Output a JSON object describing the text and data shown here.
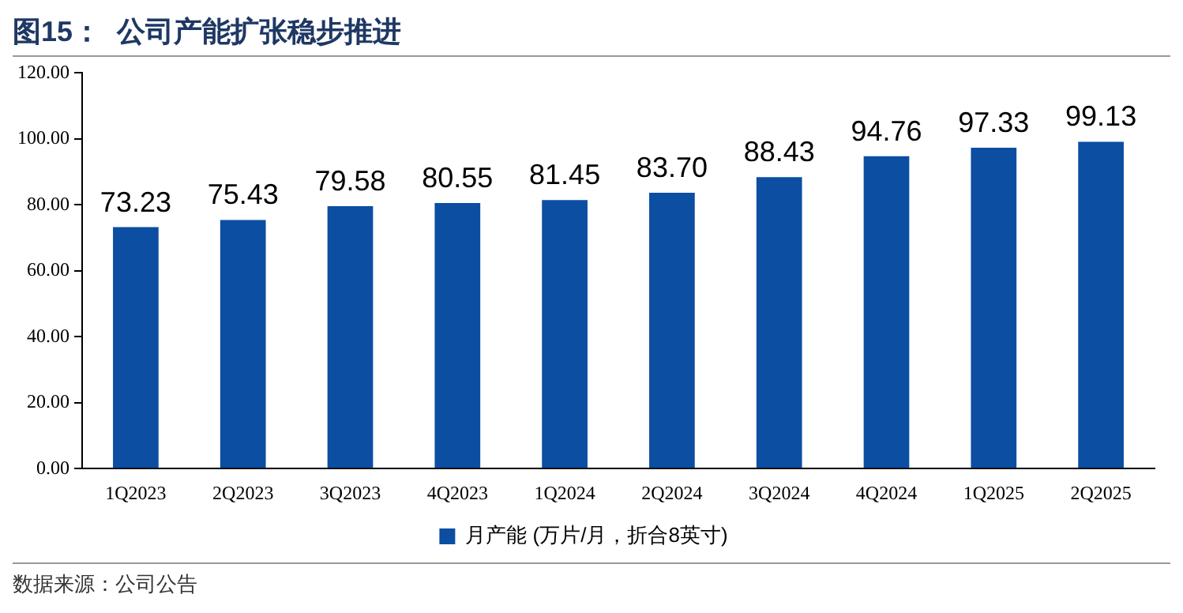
{
  "chart_data": {
    "type": "bar",
    "title": "图15：  公司产能扩张稳步推进",
    "categories": [
      "1Q2023",
      "2Q2023",
      "3Q2023",
      "4Q2023",
      "1Q2024",
      "2Q2024",
      "3Q2024",
      "4Q2024",
      "1Q2025",
      "2Q2025"
    ],
    "series": [
      {
        "name": "月产能 (万片/月，折合8英寸)",
        "color": "#0b4ea2",
        "values": [
          73.23,
          75.43,
          79.58,
          80.55,
          81.45,
          83.7,
          88.43,
          94.76,
          97.33,
          99.13
        ]
      }
    ],
    "value_labels": [
      "73.23",
      "75.43",
      "79.58",
      "80.55",
      "81.45",
      "83.70",
      "88.43",
      "94.76",
      "97.33",
      "99.13"
    ],
    "ylim": [
      0,
      120
    ],
    "yticks": [
      {
        "value": 0,
        "label": "0.00"
      },
      {
        "value": 20,
        "label": "20.00"
      },
      {
        "value": 40,
        "label": "40.00"
      },
      {
        "value": 60,
        "label": "60.00"
      },
      {
        "value": 80,
        "label": "80.00"
      },
      {
        "value": 100,
        "label": "100.00"
      },
      {
        "value": 120,
        "label": "120.00"
      }
    ],
    "grid": false,
    "legend": "bottom",
    "annotations": [
      "数据来源：公司公告"
    ]
  }
}
